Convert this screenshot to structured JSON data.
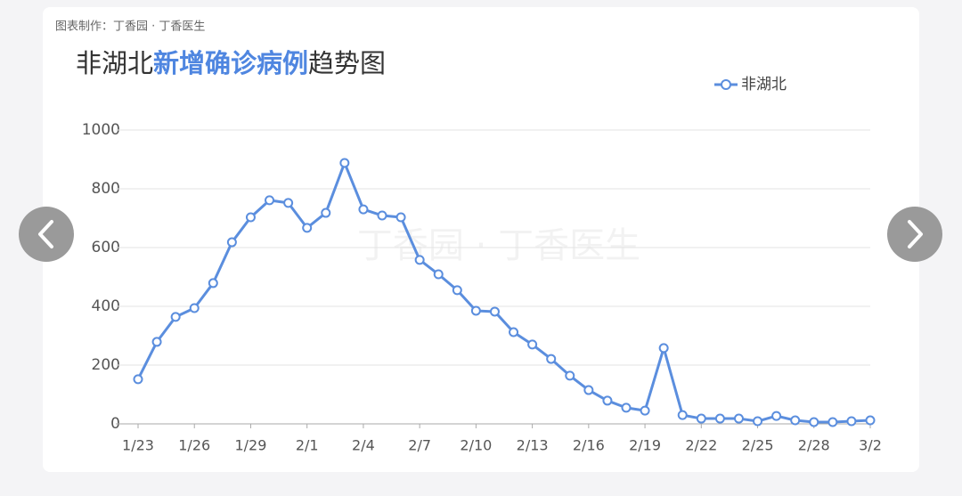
{
  "source": "图表制作：丁香园 · 丁香医生",
  "watermark": "丁香园 · 丁香医生",
  "chart_data": {
    "type": "line",
    "title": [
      "非湖北",
      "新增确诊病例",
      "趋势图"
    ],
    "categories": [
      "1/23",
      null,
      null,
      "1/26",
      null,
      null,
      "1/29",
      null,
      null,
      "2/1",
      null,
      null,
      "2/4",
      null,
      null,
      "2/7",
      null,
      null,
      "2/10",
      null,
      null,
      "2/13",
      null,
      null,
      "2/16",
      null,
      null,
      "2/19",
      null,
      null,
      "2/22",
      null,
      null,
      "2/25",
      null,
      null,
      "2/28",
      null,
      null,
      "3/2"
    ],
    "series": [
      {
        "name": "非湖北",
        "color": "#5b8ede",
        "values": [
          152,
          279,
          364,
          394,
          479,
          618,
          703,
          761,
          752,
          667,
          718,
          888,
          730,
          709,
          703,
          558,
          509,
          455,
          385,
          382,
          312,
          270,
          221,
          164,
          115,
          79,
          55,
          45,
          258,
          30,
          18,
          18,
          18,
          9,
          27,
          12,
          6,
          6,
          9,
          12
        ]
      }
    ],
    "ylim": [
      0,
      1000
    ],
    "yticks": [
      0,
      200,
      400,
      600,
      800,
      1000
    ],
    "grid": true,
    "legend": "top-right"
  }
}
